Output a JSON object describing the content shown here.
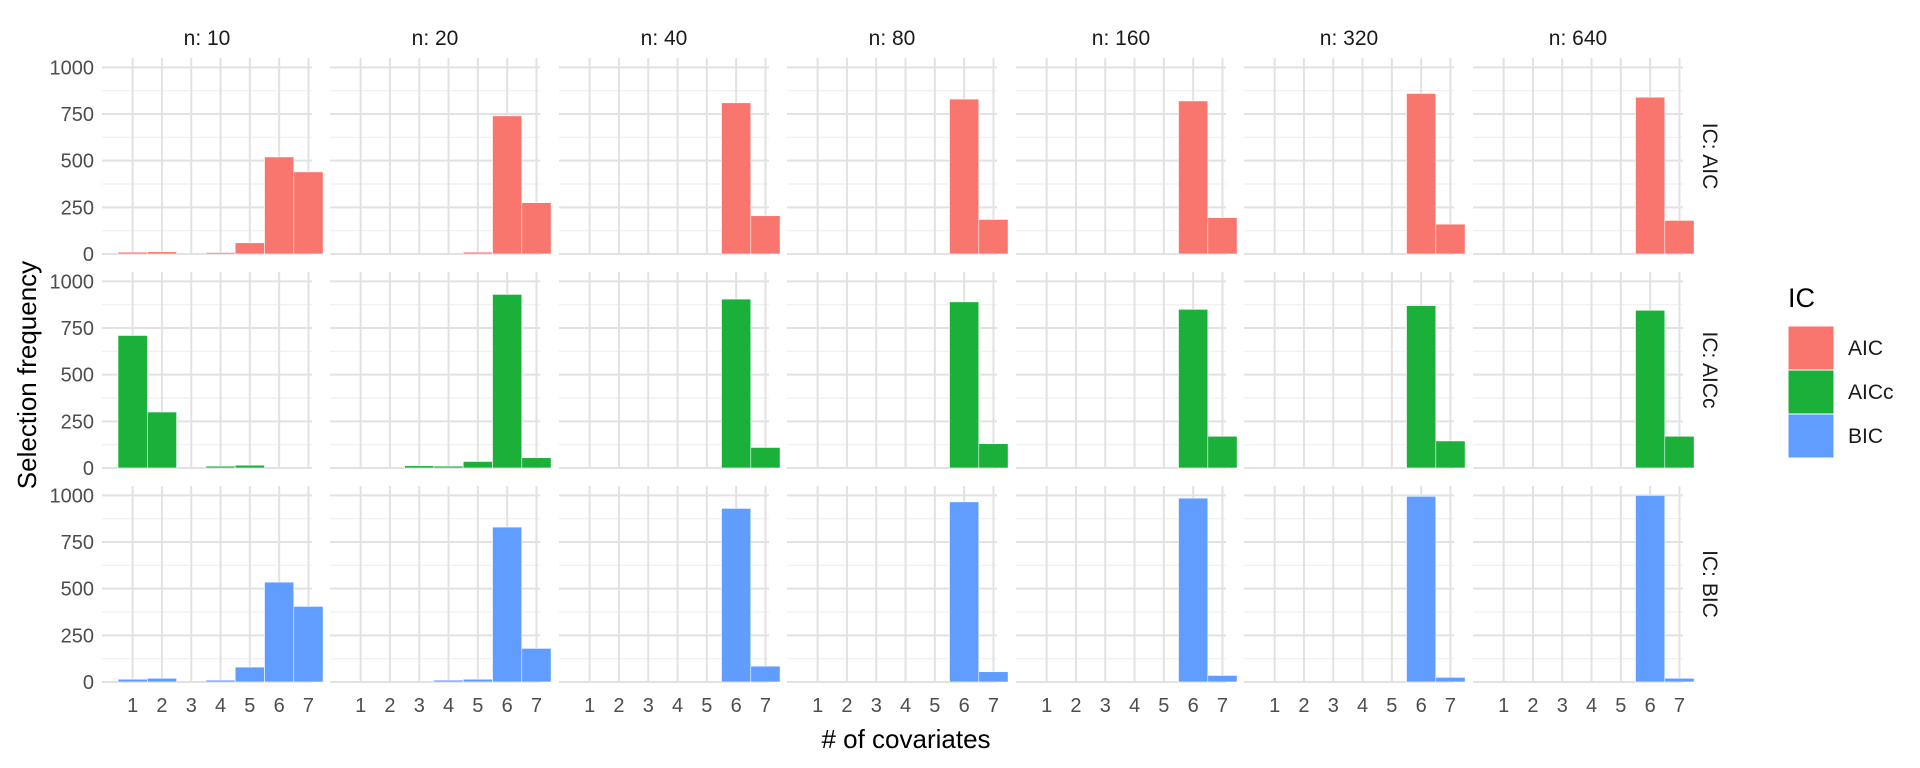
{
  "chart_data": {
    "type": "bar",
    "xlabel": "# of covariates",
    "ylabel": "Selection frequency",
    "x_categories": [
      "1",
      "2",
      "3",
      "4",
      "5",
      "6",
      "7"
    ],
    "y_ticks": [
      "0",
      "250",
      "500",
      "750",
      "1000"
    ],
    "ylim": [
      0,
      1050
    ],
    "legend": {
      "title": "IC",
      "placement": "right",
      "entries": [
        {
          "label": "AIC",
          "color": "#F8766D"
        },
        {
          "label": "AICc",
          "color": "#1BB03A"
        },
        {
          "label": "BIC",
          "color": "#619CFF"
        }
      ]
    },
    "columns": [
      {
        "label": "n: 10"
      },
      {
        "label": "n: 20"
      },
      {
        "label": "n: 40"
      },
      {
        "label": "n: 80"
      },
      {
        "label": "n: 160"
      },
      {
        "label": "n: 320"
      },
      {
        "label": "n: 640"
      }
    ],
    "rows": [
      {
        "label": "IC: AIC",
        "color": "#F8766D",
        "panels": [
          [
            10,
            12,
            0,
            8,
            60,
            520,
            440
          ],
          [
            0,
            0,
            0,
            0,
            10,
            740,
            275
          ],
          [
            0,
            0,
            0,
            0,
            0,
            810,
            205
          ],
          [
            0,
            0,
            0,
            0,
            0,
            830,
            185
          ],
          [
            0,
            0,
            0,
            0,
            0,
            820,
            195
          ],
          [
            0,
            0,
            0,
            0,
            0,
            860,
            160
          ],
          [
            0,
            0,
            0,
            0,
            0,
            840,
            180
          ]
        ]
      },
      {
        "label": "IC: AICc",
        "color": "#1BB03A",
        "panels": [
          [
            710,
            300,
            0,
            10,
            15,
            0,
            0
          ],
          [
            0,
            0,
            12,
            10,
            35,
            930,
            55
          ],
          [
            0,
            0,
            0,
            0,
            0,
            905,
            110
          ],
          [
            0,
            0,
            0,
            0,
            0,
            890,
            130
          ],
          [
            0,
            0,
            0,
            0,
            0,
            850,
            170
          ],
          [
            0,
            0,
            0,
            0,
            0,
            870,
            145
          ],
          [
            0,
            0,
            0,
            0,
            0,
            845,
            170
          ]
        ]
      },
      {
        "label": "IC: BIC",
        "color": "#619CFF",
        "panels": [
          [
            15,
            20,
            0,
            10,
            80,
            535,
            405
          ],
          [
            0,
            0,
            0,
            10,
            15,
            830,
            180
          ],
          [
            0,
            0,
            0,
            0,
            0,
            930,
            85
          ],
          [
            0,
            0,
            0,
            0,
            0,
            965,
            55
          ],
          [
            0,
            0,
            0,
            0,
            0,
            985,
            35
          ],
          [
            0,
            0,
            0,
            0,
            0,
            995,
            25
          ],
          [
            0,
            0,
            0,
            0,
            0,
            1000,
            20
          ]
        ]
      }
    ]
  }
}
